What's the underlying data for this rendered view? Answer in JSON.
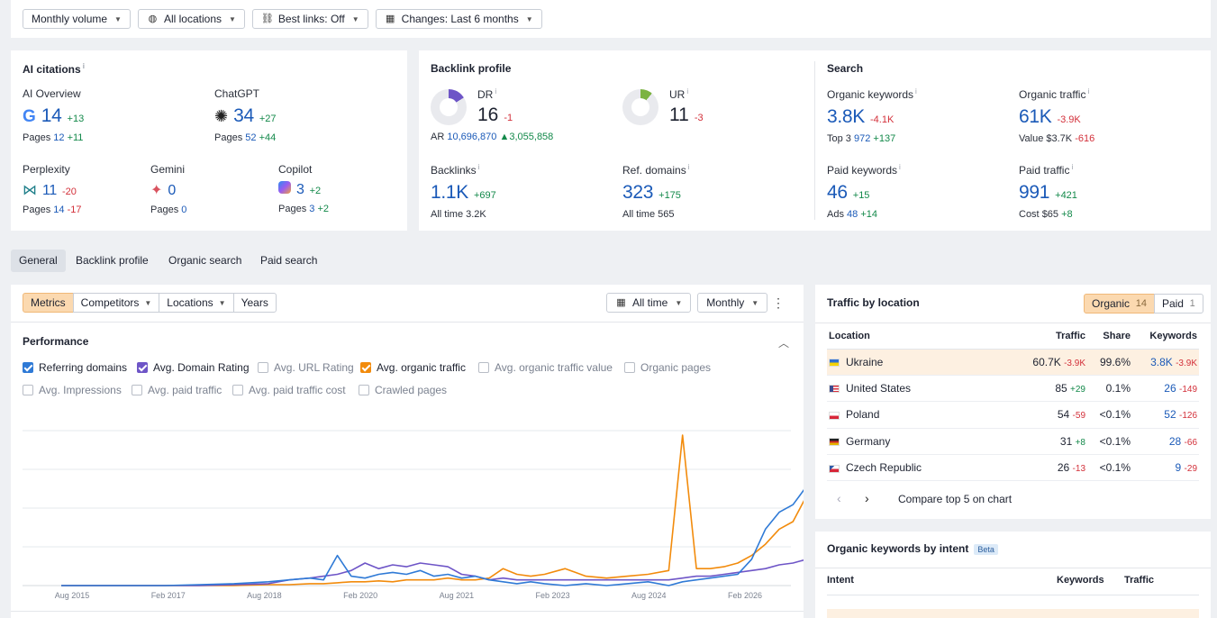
{
  "toolbar": {
    "volume": "Monthly volume",
    "locations": "All locations",
    "best_links": "Best links: Off",
    "changes": "Changes: Last 6 months"
  },
  "ai_citations": {
    "title": "AI citations",
    "ai_overview": {
      "label": "AI Overview",
      "value": "14",
      "delta": "+13",
      "pages_label": "Pages",
      "pages": "12",
      "pages_delta": "+11"
    },
    "chatgpt": {
      "label": "ChatGPT",
      "value": "34",
      "delta": "+27",
      "pages_label": "Pages",
      "pages": "52",
      "pages_delta": "+44"
    },
    "perplexity": {
      "label": "Perplexity",
      "value": "11",
      "delta": "-20",
      "pages_label": "Pages",
      "pages": "14",
      "pages_delta": "-17"
    },
    "gemini": {
      "label": "Gemini",
      "value": "0",
      "pages_label": "Pages",
      "pages": "0"
    },
    "copilot": {
      "label": "Copilot",
      "value": "3",
      "delta": "+2",
      "pages_label": "Pages",
      "pages": "3",
      "pages_delta": "+2"
    }
  },
  "backlink_profile": {
    "title": "Backlink profile",
    "dr": {
      "label": "DR",
      "value": "16",
      "delta": "-1",
      "fill_percent": 16
    },
    "ar": {
      "label": "AR",
      "value": "10,696,870",
      "delta": "3,055,858"
    },
    "ur": {
      "label": "UR",
      "value": "11",
      "delta": "-3",
      "fill_percent": 11
    },
    "backlinks": {
      "label": "Backlinks",
      "value": "1.1K",
      "delta": "+697",
      "sub_label": "All time",
      "sub_value": "3.2K"
    },
    "ref_domains": {
      "label": "Ref. domains",
      "value": "323",
      "delta": "+175",
      "sub_label": "All time",
      "sub_value": "565"
    }
  },
  "search": {
    "title": "Search",
    "organic_keywords": {
      "label": "Organic keywords",
      "value": "3.8K",
      "delta": "-4.1K",
      "sub_label": "Top 3",
      "sub_value": "972",
      "sub_delta": "+137"
    },
    "organic_traffic": {
      "label": "Organic traffic",
      "value": "61K",
      "delta": "-3.9K",
      "sub_label": "Value",
      "sub_value": "$3.7K",
      "sub_delta": "-616"
    },
    "paid_keywords": {
      "label": "Paid keywords",
      "value": "46",
      "delta": "+15",
      "sub_label": "Ads",
      "sub_value": "48",
      "sub_delta": "+14"
    },
    "paid_traffic": {
      "label": "Paid traffic",
      "value": "991",
      "delta": "+421",
      "sub_label": "Cost",
      "sub_value": "$65",
      "sub_delta": "+8"
    }
  },
  "tabs": [
    "General",
    "Backlink profile",
    "Organic search",
    "Paid search"
  ],
  "chart_toolbar": {
    "metrics": "Metrics",
    "competitors": "Competitors",
    "locations": "Locations",
    "years": "Years",
    "all_time": "All time",
    "monthly": "Monthly"
  },
  "performance": {
    "title": "Performance",
    "checkboxes": [
      {
        "label": "Referring domains",
        "checked": true,
        "color": "#2f7ad6"
      },
      {
        "label": "Avg. Domain Rating",
        "checked": true,
        "color": "#6e55c7"
      },
      {
        "label": "Avg. URL Rating",
        "checked": false
      },
      {
        "label": "Avg. organic traffic",
        "checked": true,
        "color": "#f28b0c"
      },
      {
        "label": "Avg. organic traffic value",
        "checked": false
      },
      {
        "label": "Organic pages",
        "checked": false
      },
      {
        "label": "Avg. Impressions",
        "checked": false
      },
      {
        "label": "Avg. paid traffic",
        "checked": false
      },
      {
        "label": "Avg. paid traffic cost",
        "checked": false
      },
      {
        "label": "Crawled pages",
        "checked": false
      }
    ]
  },
  "chart_data": {
    "type": "line",
    "x_tick_labels": [
      "Aug 2015",
      "Feb 2017",
      "Aug 2018",
      "Feb 2020",
      "Aug 2021",
      "Feb 2023",
      "Aug 2024",
      "Feb 2026"
    ],
    "x": [
      2015.0,
      2015.5,
      2016.0,
      2016.5,
      2017.0,
      2017.5,
      2018.0,
      2018.3,
      2018.6,
      2018.8,
      2019.0,
      2019.2,
      2019.4,
      2019.6,
      2019.8,
      2020.0,
      2020.2,
      2020.4,
      2020.6,
      2020.8,
      2021.0,
      2021.2,
      2021.4,
      2021.6,
      2021.8,
      2022.0,
      2022.3,
      2022.6,
      2022.9,
      2023.2,
      2023.5,
      2023.8,
      2024.0,
      2024.2,
      2024.4,
      2024.6,
      2024.8,
      2025.0,
      2025.2,
      2025.4,
      2025.6,
      2025.8,
      2026.0
    ],
    "series": [
      {
        "name": "Referring domains",
        "color": "#2f7ad6",
        "values": [
          0,
          0,
          0,
          0,
          0.5,
          1,
          2,
          3,
          4,
          3,
          16,
          5,
          4,
          6,
          7,
          6,
          8,
          5,
          6,
          4,
          5,
          3,
          2,
          1,
          2,
          1,
          0,
          1,
          0,
          1,
          2,
          0,
          2,
          3,
          4,
          5,
          6,
          14,
          30,
          39,
          43,
          53,
          57
        ]
      },
      {
        "name": "Avg. Domain Rating",
        "color": "#6e55c7",
        "values": [
          0,
          0,
          0,
          0,
          0,
          0.5,
          1,
          3,
          4,
          5,
          6,
          8,
          12,
          9,
          11,
          10,
          12,
          11,
          10,
          6,
          5,
          3,
          4,
          3,
          3,
          3,
          3,
          3,
          3,
          3,
          3,
          3,
          4,
          5,
          5,
          6,
          7,
          8,
          9,
          11,
          12,
          14,
          14
        ]
      },
      {
        "name": "Avg. organic traffic",
        "color": "#f28b0c",
        "values": [
          0,
          0,
          0,
          0,
          0,
          0,
          0.5,
          0.5,
          1,
          1,
          1.5,
          2,
          2,
          2.5,
          2,
          3,
          3,
          3,
          4,
          3,
          3,
          4,
          9,
          6,
          5,
          6,
          9,
          5,
          4,
          5,
          6,
          8,
          80,
          9,
          9,
          10,
          12,
          16,
          22,
          30,
          34,
          48,
          36
        ]
      }
    ]
  },
  "traffic_by_location": {
    "title": "Traffic by location",
    "organic_label": "Organic",
    "organic_count": "14",
    "paid_label": "Paid",
    "paid_count": "1",
    "columns": [
      "Location",
      "Traffic",
      "Share",
      "Keywords"
    ],
    "rows": [
      {
        "country": "Ukraine",
        "traffic": "60.7K",
        "traffic_delta": "-3.9K",
        "share": "99.6%",
        "keywords": "3.8K",
        "keywords_delta": "-3.9K",
        "flag": [
          "#2f6fd1",
          "#f5d200"
        ]
      },
      {
        "country": "United States",
        "traffic": "85",
        "traffic_delta": "+29",
        "share": "0.1%",
        "keywords": "26",
        "keywords_delta": "-149",
        "flag": [
          "#3c4b8f",
          "#d9333f"
        ]
      },
      {
        "country": "Poland",
        "traffic": "54",
        "traffic_delta": "-59",
        "share": "<0.1%",
        "keywords": "52",
        "keywords_delta": "-126",
        "flag": [
          "#ffffff",
          "#d72638"
        ]
      },
      {
        "country": "Germany",
        "traffic": "31",
        "traffic_delta": "+8",
        "share": "<0.1%",
        "keywords": "28",
        "keywords_delta": "-66",
        "flag": [
          "#222222",
          "#e4b300"
        ]
      },
      {
        "country": "Czech Republic",
        "traffic": "26",
        "traffic_delta": "-13",
        "share": "<0.1%",
        "keywords": "9",
        "keywords_delta": "-29",
        "flag": [
          "#ffffff",
          "#2e5aa8"
        ]
      }
    ],
    "compare_label": "Compare top 5 on chart"
  },
  "intent": {
    "title": "Organic keywords by intent",
    "beta": "Beta",
    "columns": [
      "Intent",
      "Keywords",
      "Traffic"
    ]
  }
}
